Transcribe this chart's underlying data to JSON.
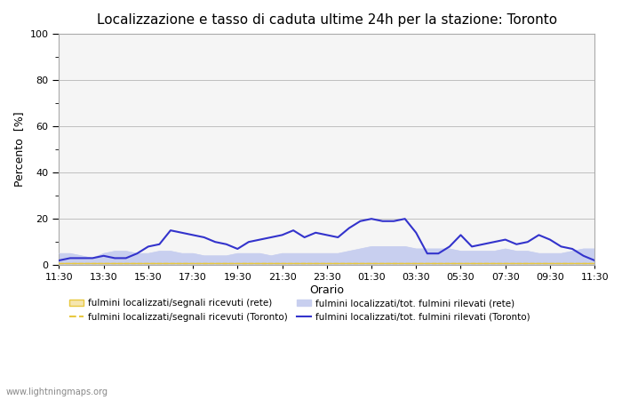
{
  "title": "Localizzazione e tasso di caduta ultime 24h per la stazione: Toronto",
  "xlabel": "Orario",
  "ylabel": "Percento  [%]",
  "ylim": [
    0,
    100
  ],
  "yticks": [
    0,
    20,
    40,
    60,
    80,
    100
  ],
  "x_labels": [
    "11:30",
    "13:30",
    "15:30",
    "17:30",
    "19:30",
    "21:30",
    "23:30",
    "01:30",
    "03:30",
    "05:30",
    "07:30",
    "09:30",
    "11:30"
  ],
  "watermark": "www.lightningmaps.org",
  "bg_color": "#ffffff",
  "plot_bg_color": "#f5f5f5",
  "x_values": [
    0,
    1,
    2,
    3,
    4,
    5,
    6,
    7,
    8,
    9,
    10,
    11,
    12,
    13,
    14,
    15,
    16,
    17,
    18,
    19,
    20,
    21,
    22,
    23,
    24,
    25,
    26,
    27,
    28,
    29,
    30,
    31,
    32,
    33,
    34,
    35,
    36,
    37,
    38,
    39,
    40,
    41,
    42,
    43,
    44,
    45,
    46,
    47,
    48
  ],
  "rete_signal": [
    1,
    1,
    1,
    1,
    1,
    1,
    1,
    1,
    1,
    1,
    1,
    1,
    1,
    1,
    1,
    1,
    1,
    1,
    1,
    1,
    1,
    1,
    1,
    1,
    1,
    1,
    1,
    1,
    1,
    1,
    1,
    1,
    1,
    1,
    1,
    1,
    1,
    1,
    1,
    1,
    1,
    1,
    1,
    1,
    1,
    1,
    1,
    1,
    1
  ],
  "rete_tot": [
    5,
    5,
    4,
    3,
    5,
    6,
    6,
    5,
    5,
    6,
    6,
    5,
    5,
    4,
    4,
    4,
    5,
    5,
    5,
    4,
    5,
    5,
    5,
    5,
    5,
    5,
    6,
    7,
    8,
    8,
    8,
    8,
    7,
    7,
    7,
    7,
    6,
    6,
    6,
    6,
    7,
    6,
    6,
    5,
    5,
    5,
    6,
    7,
    7
  ],
  "toronto_signal": [
    1,
    1,
    1,
    1,
    1,
    1,
    1,
    1,
    1,
    1,
    1,
    1,
    1,
    1,
    1,
    1,
    1,
    1,
    1,
    1,
    1,
    1,
    1,
    1,
    1,
    1,
    1,
    1,
    1,
    1,
    1,
    1,
    1,
    1,
    1,
    1,
    1,
    1,
    1,
    1,
    1,
    1,
    1,
    1,
    1,
    1,
    1,
    1,
    1
  ],
  "toronto_tot": [
    2,
    3,
    3,
    3,
    4,
    3,
    3,
    5,
    8,
    9,
    15,
    14,
    13,
    12,
    10,
    9,
    7,
    10,
    11,
    12,
    13,
    15,
    12,
    14,
    13,
    12,
    16,
    19,
    20,
    19,
    19,
    20,
    14,
    5,
    5,
    8,
    13,
    8,
    9,
    10,
    11,
    9,
    10,
    13,
    11,
    8,
    7,
    4,
    2
  ],
  "color_rete_signal_fill": "#f5e6b0",
  "color_rete_signal_line": "#e8c840",
  "color_toronto_signal_fill": "#f5e6b0",
  "color_toronto_signal_line": "#e8c840",
  "color_rete_tot_fill": "#c8cfef",
  "color_rete_tot_line": "#c8cfef",
  "color_toronto_tot_line": "#3333cc",
  "legend_labels": [
    "fulmini localizzati/segnali ricevuti (rete)",
    "fulmini localizzati/segnali ricevuti (Toronto)",
    "fulmini localizzati/tot. fulmini rilevati (rete)",
    "fulmini localizzati/tot. fulmini rilevati (Toronto)"
  ]
}
